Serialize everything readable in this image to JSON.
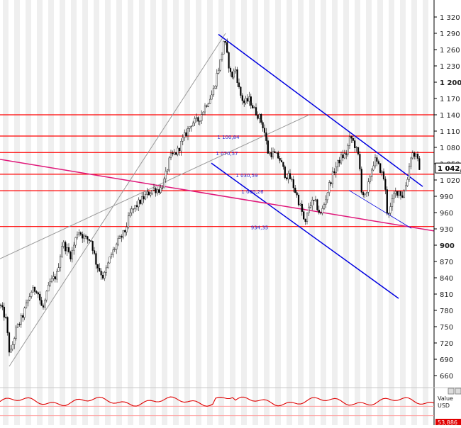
{
  "chart_data": [
    {
      "type": "candlestick",
      "ylim": [
        640,
        1340
      ],
      "y_axis_side": "right",
      "y_ticks": [
        660,
        690,
        720,
        750,
        780,
        810,
        840,
        870,
        900,
        930,
        960,
        990,
        1020,
        1050,
        1080,
        1110,
        1140,
        1170,
        1200,
        1230,
        1260,
        1290,
        1320
      ],
      "y_tick_labels": [
        "660",
        "690",
        "720",
        "750",
        "780",
        "810",
        "840",
        "870",
        "900",
        "930",
        "960",
        "990",
        "1 020",
        "1 050",
        "1 080",
        "1 110",
        "1 140",
        "1 170",
        "1 200",
        "1 230",
        "1 260",
        "1 290",
        "1 320"
      ],
      "bold_ticks": [
        "900",
        "1 200"
      ],
      "grid": "vertical stripes",
      "current_price": {
        "value": 1042,
        "label": "1 042,1"
      },
      "horizontal_levels": [
        {
          "value": 1140,
          "label": "",
          "color": "#ff0000"
        },
        {
          "value": 1100.84,
          "label": "1 100,84",
          "color": "#ff0000"
        },
        {
          "value": 1070.57,
          "label": "1 070,57",
          "color": "#ff0000"
        },
        {
          "value": 1030.59,
          "label": "1 030,59",
          "color": "#ff0000"
        },
        {
          "value": 1000.26,
          "label": "1 000,26",
          "color": "#ff0000"
        },
        {
          "value": 934.35,
          "label": "934,35",
          "color": "#ff0000"
        }
      ],
      "trend_lines": [
        {
          "kind": "channel",
          "color": "#9a9a9a",
          "points": [
            [
              13,
              677
            ],
            [
              318,
              1290
            ]
          ]
        },
        {
          "kind": "channel",
          "color": "#9a9a9a",
          "points": [
            [
              0,
              875
            ],
            [
              436,
              1140
            ]
          ]
        },
        {
          "kind": "downtrend",
          "color": "#0000e0",
          "points": [
            [
              308,
              1288
            ],
            [
              596,
              1008
            ]
          ]
        },
        {
          "kind": "downtrend",
          "color": "#0000e0",
          "points": [
            [
              298,
              1051
            ],
            [
              562,
              802
            ]
          ]
        },
        {
          "kind": "support",
          "color": "#e0187a",
          "points": [
            [
              0,
              1058
            ],
            [
              650,
              918
            ]
          ]
        },
        {
          "kind": "minor",
          "color": "#0000e0",
          "points": [
            [
              492,
              1001
            ],
            [
              580,
              931
            ]
          ]
        }
      ],
      "price_path": [
        [
          0,
          790
        ],
        [
          8,
          765
        ],
        [
          14,
          695
        ],
        [
          22,
          742
        ],
        [
          32,
          770
        ],
        [
          44,
          815
        ],
        [
          52,
          820
        ],
        [
          60,
          780
        ],
        [
          70,
          830
        ],
        [
          80,
          845
        ],
        [
          88,
          905
        ],
        [
          100,
          880
        ],
        [
          110,
          928
        ],
        [
          120,
          912
        ],
        [
          128,
          910
        ],
        [
          136,
          865
        ],
        [
          146,
          840
        ],
        [
          156,
          880
        ],
        [
          166,
          905
        ],
        [
          176,
          925
        ],
        [
          184,
          960
        ],
        [
          196,
          978
        ],
        [
          206,
          992
        ],
        [
          216,
          1003
        ],
        [
          226,
          1002
        ],
        [
          232,
          1020
        ],
        [
          240,
          1062
        ],
        [
          250,
          1072
        ],
        [
          260,
          1100
        ],
        [
          270,
          1125
        ],
        [
          280,
          1130
        ],
        [
          290,
          1158
        ],
        [
          300,
          1180
        ],
        [
          306,
          1215
        ],
        [
          312,
          1245
        ],
        [
          316,
          1282
        ],
        [
          320,
          1250
        ],
        [
          326,
          1208
        ],
        [
          332,
          1225
        ],
        [
          338,
          1180
        ],
        [
          344,
          1162
        ],
        [
          352,
          1168
        ],
        [
          358,
          1150
        ],
        [
          366,
          1135
        ],
        [
          372,
          1115
        ],
        [
          378,
          1070
        ],
        [
          386,
          1068
        ],
        [
          394,
          1060
        ],
        [
          402,
          1030
        ],
        [
          410,
          1022
        ],
        [
          418,
          993
        ],
        [
          426,
          960
        ],
        [
          430,
          935
        ],
        [
          436,
          975
        ],
        [
          444,
          980
        ],
        [
          452,
          955
        ],
        [
          458,
          980
        ],
        [
          464,
          1010
        ],
        [
          472,
          1040
        ],
        [
          480,
          1060
        ],
        [
          488,
          1068
        ],
        [
          494,
          1100
        ],
        [
          500,
          1085
        ],
        [
          506,
          1060
        ],
        [
          510,
          1000
        ],
        [
          516,
          985
        ],
        [
          522,
          1030
        ],
        [
          528,
          1058
        ],
        [
          536,
          1040
        ],
        [
          542,
          1020
        ],
        [
          546,
          960
        ],
        [
          550,
          965
        ],
        [
          556,
          995
        ],
        [
          562,
          1000
        ],
        [
          568,
          990
        ],
        [
          574,
          1020
        ],
        [
          580,
          1070
        ],
        [
          586,
          1065
        ],
        [
          592,
          1042
        ]
      ],
      "sub_indicator": {
        "label_value": "Value",
        "label_currency": "USD",
        "readout": "53,886",
        "color": "#e00000",
        "ylim": [
          0,
          60
        ],
        "levels": [
          20,
          40
        ]
      }
    }
  ]
}
